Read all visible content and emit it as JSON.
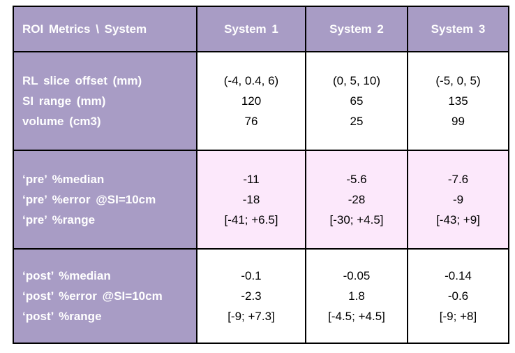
{
  "colors": {
    "header_bg": "#a89cc5",
    "label_bg": "#a89cc5",
    "pre_bg": "#fce8fb",
    "post_bg": "#ffffff",
    "border": "#000000",
    "header_text": "#ffffff",
    "data_text": "#000000"
  },
  "table": {
    "header": {
      "corner": "ROI Metrics \\ System",
      "columns": [
        "System 1",
        "System 2",
        "System 3"
      ]
    },
    "sections": [
      {
        "name": "geometry",
        "labels": [
          "RL slice offset (mm)",
          "SI range (mm)",
          "volume (cm3)"
        ],
        "values": [
          [
            "(-4, 0.4, 6)",
            "120",
            "76"
          ],
          [
            "(0, 5, 10)",
            "65",
            "25"
          ],
          [
            "(-5, 0, 5)",
            "135",
            "99"
          ]
        ]
      },
      {
        "name": "pre",
        "labels": [
          "‘pre’ %median",
          "‘pre’ %error @SI=10cm",
          "‘pre’ %range"
        ],
        "values": [
          [
            "-11",
            "-18",
            "[-41; +6.5]"
          ],
          [
            "-5.6",
            "-28",
            "[-30; +4.5]"
          ],
          [
            "-7.6",
            "-9",
            "[-43; +9]"
          ]
        ]
      },
      {
        "name": "post",
        "labels": [
          "‘post’ %median",
          "‘post’ %error @SI=10cm",
          "‘post’ %range"
        ],
        "values": [
          [
            "-0.1",
            "-2.3",
            "[-9; +7.3]"
          ],
          [
            "-0.05",
            "1.8",
            "[-4.5; +4.5]"
          ],
          [
            "-0.14",
            "-0.6",
            "[-9; +8]"
          ]
        ]
      }
    ]
  },
  "chart_data": {
    "type": "table",
    "title": "ROI Metrics \\ System",
    "columns": [
      "System 1",
      "System 2",
      "System 3"
    ],
    "rows": [
      {
        "metric": "RL slice offset (mm)",
        "values": [
          "(-4, 0.4, 6)",
          "(0, 5, 10)",
          "(-5, 0, 5)"
        ]
      },
      {
        "metric": "SI range (mm)",
        "values": [
          120,
          65,
          135
        ]
      },
      {
        "metric": "volume (cm3)",
        "values": [
          76,
          25,
          99
        ]
      },
      {
        "metric": "‘pre’ %median",
        "values": [
          -11,
          -5.6,
          -7.6
        ]
      },
      {
        "metric": "‘pre’ %error @SI=10cm",
        "values": [
          -18,
          -28,
          -9
        ]
      },
      {
        "metric": "‘pre’ %range",
        "values": [
          "[-41; +6.5]",
          "[-30; +4.5]",
          "[-43; +9]"
        ]
      },
      {
        "metric": "‘post’ %median",
        "values": [
          -0.1,
          -0.05,
          -0.14
        ]
      },
      {
        "metric": "‘post’ %error @SI=10cm",
        "values": [
          -2.3,
          1.8,
          -0.6
        ]
      },
      {
        "metric": "‘post’ %range",
        "values": [
          "[-9; +7.3]",
          "[-4.5; +4.5]",
          "[-9; +8]"
        ]
      }
    ]
  }
}
